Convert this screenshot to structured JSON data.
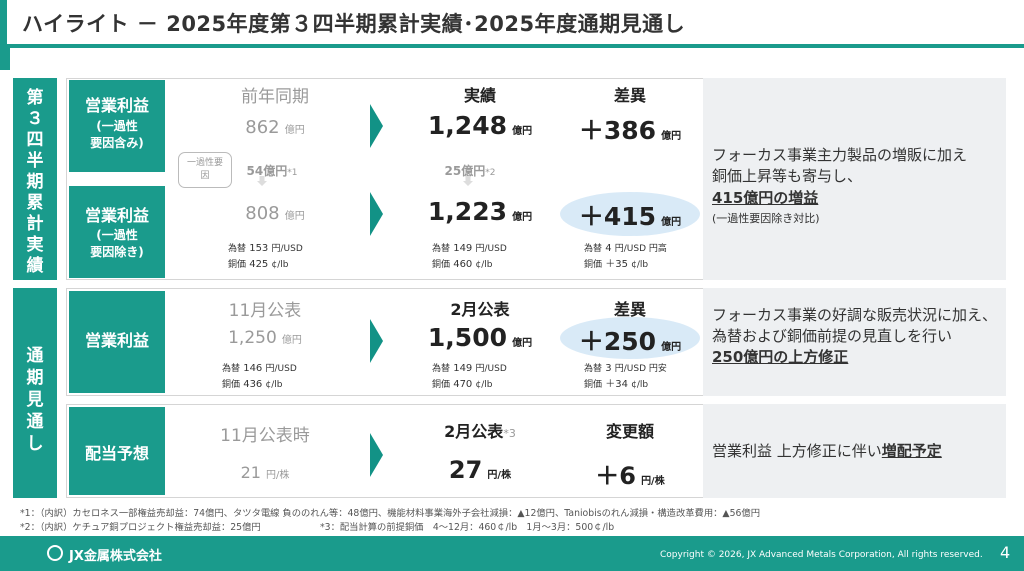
{
  "title": "ハイライト － 2025年度第３四半期累計実績･2025年度通期見通し",
  "side": {
    "actual": "第３四半期累計 実績",
    "forecast": "通期見通し"
  },
  "block1": {
    "row1_label": "営業利益",
    "row1_sub1": "(一過性",
    "row1_sub2": "要因含み)",
    "row2_label": "営業利益",
    "row2_sub1": "(一過性",
    "row2_sub2": "要因除き)",
    "h_prev": "前年同期",
    "h_act": "実績",
    "h_diff": "差異",
    "prev1": "862",
    "prev1_u": "億円",
    "act1": "1,248",
    "act1_u": "億円",
    "diff1": "＋386",
    "diff1_u": "億円",
    "onetime": "一過性要因",
    "prev_adj": "54億円",
    "prev_adj_n": "*1",
    "act_adj": "25億円",
    "act_adj_n": "*2",
    "prev2": "808",
    "prev2_u": "億円",
    "act2": "1,223",
    "act2_u": "億円",
    "diff2": "＋415",
    "diff2_u": "億円",
    "fx_prev": [
      "為替",
      "153",
      "円/USD"
    ],
    "cu_prev": [
      "銅価",
      "425",
      "¢/lb"
    ],
    "fx_act": [
      "為替",
      "149",
      "円/USD"
    ],
    "cu_act": [
      "銅価",
      "460",
      "¢/lb"
    ],
    "fx_diff": [
      "為替",
      "4",
      "円/USD 円高"
    ],
    "cu_diff": [
      "銅価",
      "＋35",
      "¢/lb"
    ],
    "note1": "フォーカス事業主力製品の増販に加え",
    "note2": "銅価上昇等も寄与し、",
    "note3": "415億円の増益",
    "note4": "(一過性要因除き対比)"
  },
  "block2": {
    "label": "営業利益",
    "h_prev": "11月公表",
    "h_act": "2月公表",
    "h_diff": "差異",
    "prev": "1,250",
    "prev_u": "億円",
    "act": "1,500",
    "act_u": "億円",
    "diff": "＋250",
    "diff_u": "億円",
    "fx_prev": [
      "為替",
      "146",
      "円/USD"
    ],
    "cu_prev": [
      "銅価",
      "436",
      "¢/lb"
    ],
    "fx_act": [
      "為替",
      "149",
      "円/USD"
    ],
    "cu_act": [
      "銅価",
      "470",
      "¢/lb"
    ],
    "fx_diff": [
      "為替",
      "3",
      "円/USD 円安"
    ],
    "cu_diff": [
      "銅価",
      "＋34",
      "¢/lb"
    ],
    "note1": "フォーカス事業の好調な販売状況に加え、",
    "note2": "為替および銅価前提の見直しを行い",
    "note3": "250億円の上方修正"
  },
  "block3": {
    "label": "配当予想",
    "h_prev": "11月公表時",
    "h_act": "2月公表",
    "h_act_n": "*3",
    "h_diff": "変更額",
    "prev": "21",
    "prev_u": "円/株",
    "act": "27",
    "act_u": "円/株",
    "diff": "＋6",
    "diff_u": "円/株",
    "note_a": "営業利益 上方修正に伴い",
    "note_b": "増配予定"
  },
  "footnote1": "*1：（内訳）カセロネス一部権益売却益：74億円、タツタ電線 負ののれん等：48億円、機能材料事業海外子会社減損：▲12億円、Taniobisのれん減損・構造改革費用：▲56億円",
  "footnote2": "*2：（内訳）ケチュア銅プロジェクト権益売却益：25億円",
  "footnote3": "*3：配当計算の前提銅価　4～12月：460￠/lb　1月～3月：500￠/lb",
  "footer": {
    "logo": "JX金属株式会社",
    "copyright": "Copyright © 2026, JX Advanced Metals Corporation, All rights reserved.",
    "page": "4"
  },
  "colors": {
    "teal": "#1a9b8c",
    "dark_teal": "#127c70",
    "panel": "#eef0f2",
    "highlight": "#d9eaf7"
  }
}
